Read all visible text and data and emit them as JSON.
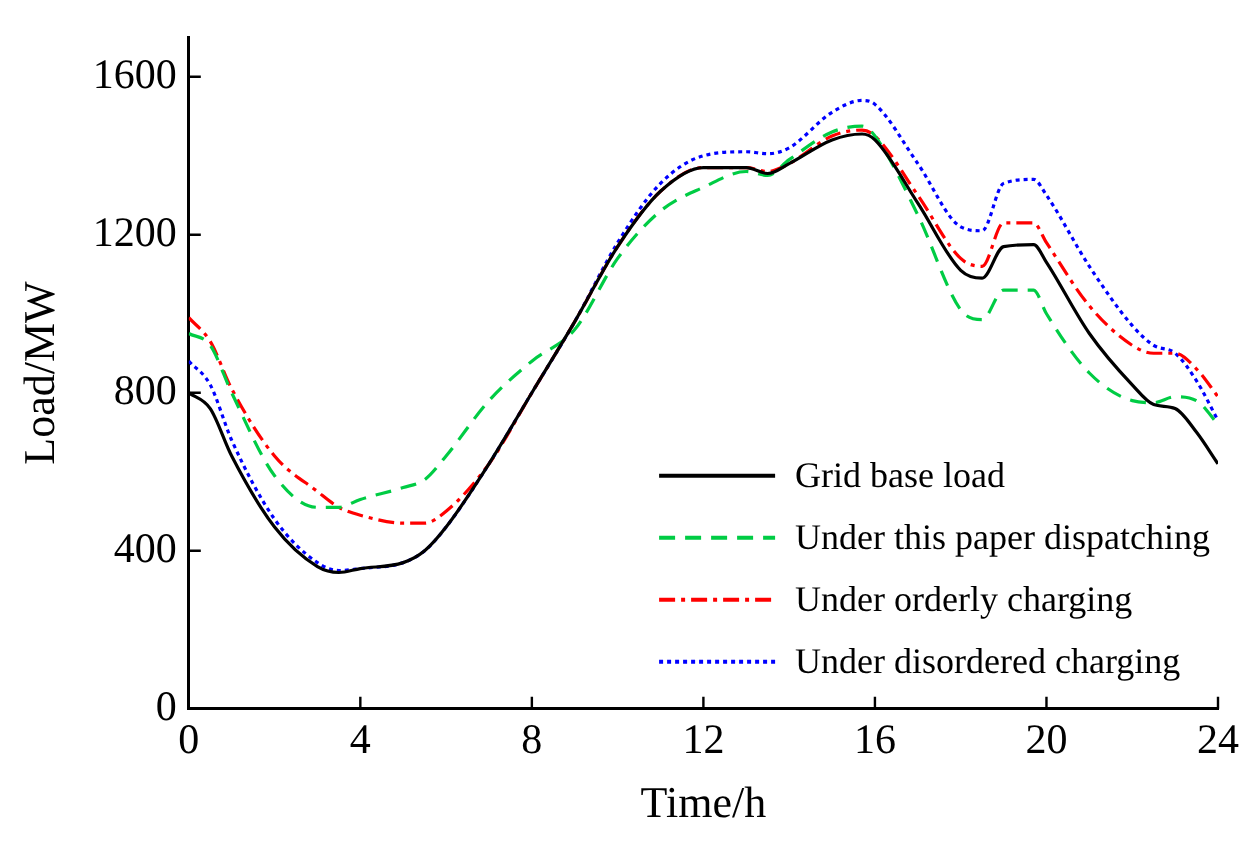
{
  "chart_data": {
    "type": "line",
    "xlabel": "Time/h",
    "ylabel": "Load/MW",
    "x": [
      0,
      0.5,
      1,
      2,
      3,
      3.5,
      4,
      5,
      5.5,
      6,
      7,
      8,
      9,
      10,
      11,
      12,
      13,
      13.5,
      14,
      15,
      15.7,
      16,
      17,
      18,
      18.5,
      19,
      19.7,
      20,
      21,
      22,
      22.5,
      23,
      23.5,
      24
    ],
    "series": [
      {
        "name": "Grid base load",
        "color": "#000000",
        "line_style": "solid",
        "values": [
          800,
          760,
          640,
          460,
          360,
          345,
          355,
          370,
          400,
          460,
          620,
          800,
          980,
          1170,
          1310,
          1370,
          1370,
          1355,
          1380,
          1440,
          1455,
          1440,
          1280,
          1110,
          1090,
          1170,
          1175,
          1130,
          950,
          820,
          770,
          760,
          700,
          620
        ]
      },
      {
        "name": "Under this paper dispatching",
        "color": "#00cc44",
        "line_style": "dashed",
        "values": [
          950,
          920,
          800,
          590,
          510,
          510,
          530,
          560,
          580,
          640,
          780,
          880,
          960,
          1140,
          1260,
          1320,
          1360,
          1350,
          1390,
          1460,
          1475,
          1450,
          1250,
          1010,
          985,
          1060,
          1060,
          1000,
          850,
          780,
          775,
          790,
          780,
          720
        ]
      },
      {
        "name": "Under orderly charging",
        "color": "#ff0000",
        "line_style": "dashdot",
        "values": [
          990,
          930,
          810,
          640,
          550,
          510,
          490,
          470,
          470,
          500,
          620,
          800,
          980,
          1170,
          1310,
          1370,
          1370,
          1360,
          1380,
          1450,
          1465,
          1450,
          1300,
          1140,
          1120,
          1230,
          1230,
          1180,
          1020,
          920,
          900,
          900,
          860,
          790
        ]
      },
      {
        "name": "Under disordered charging",
        "color": "#0000ff",
        "line_style": "dotted",
        "values": [
          880,
          820,
          680,
          480,
          370,
          350,
          355,
          370,
          400,
          460,
          620,
          800,
          980,
          1180,
          1330,
          1400,
          1410,
          1405,
          1420,
          1510,
          1540,
          1530,
          1380,
          1220,
          1210,
          1330,
          1340,
          1300,
          1120,
          970,
          920,
          900,
          830,
          730
        ]
      }
    ],
    "xlim": [
      0,
      24
    ],
    "xticks": [
      0,
      4,
      8,
      12,
      16,
      20,
      24
    ],
    "ylim": [
      0,
      1700
    ],
    "yticks": [
      0,
      400,
      800,
      1200,
      1600
    ],
    "grid": false,
    "legend": "bottom right",
    "marker": "none"
  }
}
